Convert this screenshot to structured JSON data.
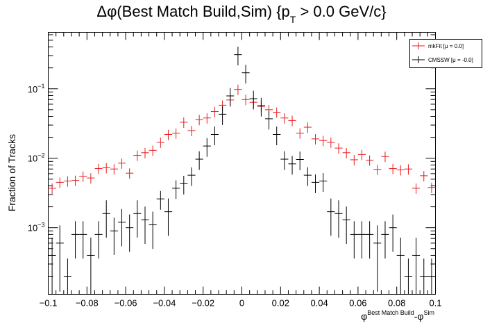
{
  "chart_data": {
    "type": "scatter",
    "title": "Δφ(Best Match Build,Sim) {p",
    "title_sub": "T",
    "title_rest": " > 0.0 GeV/c}",
    "ylabel": "Fraction of Tracks",
    "xlabel_phi": "φ",
    "xlabel_sub1": "Best Match Build",
    "xlabel_mid": "-φ",
    "xlabel_sub2": "Sim",
    "xlim": [
      -0.1,
      0.1
    ],
    "ylim": [
      0.00011,
      0.65
    ],
    "yscale": "log",
    "grid": false,
    "legend_position": "top-right",
    "x_tick_labels": [
      "−0.1",
      "−0.08",
      "−0.06",
      "−0.04",
      "−0.02",
      "0",
      "0.02",
      "0.04",
      "0.06",
      "0.08",
      "0.1"
    ],
    "y_tick_labels": [
      {
        "value": 0.001,
        "base": "10",
        "exp": "−3"
      },
      {
        "value": 0.01,
        "base": "10",
        "exp": "−2"
      },
      {
        "value": 0.1,
        "base": "10",
        "exp": "−1"
      }
    ],
    "bin_width": 0.004,
    "series": [
      {
        "name": "mkFit",
        "legend_label": "mkFit  [μ  =  0.0]",
        "color": "#e8191c",
        "x": [
          -0.098,
          -0.094,
          -0.09,
          -0.086,
          -0.082,
          -0.078,
          -0.074,
          -0.07,
          -0.066,
          -0.062,
          -0.058,
          -0.054,
          -0.05,
          -0.046,
          -0.042,
          -0.038,
          -0.034,
          -0.03,
          -0.026,
          -0.022,
          -0.018,
          -0.014,
          -0.01,
          -0.006,
          -0.002,
          0.002,
          0.006,
          0.01,
          0.014,
          0.018,
          0.022,
          0.026,
          0.03,
          0.034,
          0.038,
          0.042,
          0.046,
          0.05,
          0.054,
          0.058,
          0.062,
          0.066,
          0.07,
          0.074,
          0.078,
          0.082,
          0.086,
          0.09,
          0.094,
          0.098
        ],
        "y": [
          0.0037,
          0.0045,
          0.0047,
          0.0048,
          0.0055,
          0.0052,
          0.0071,
          0.0073,
          0.007,
          0.0085,
          0.0061,
          0.011,
          0.012,
          0.013,
          0.017,
          0.022,
          0.023,
          0.033,
          0.025,
          0.036,
          0.038,
          0.047,
          0.058,
          0.069,
          0.098,
          0.07,
          0.064,
          0.056,
          0.05,
          0.046,
          0.038,
          0.035,
          0.023,
          0.028,
          0.019,
          0.018,
          0.017,
          0.014,
          0.012,
          0.0095,
          0.0113,
          0.0094,
          0.0069,
          0.0106,
          0.0071,
          0.0068,
          0.007,
          0.0037,
          0.0056,
          0.0038
        ]
      },
      {
        "name": "CMSSW",
        "legend_label": "CMSSW  [μ  =  -0.0]",
        "color": "#000000",
        "x": [
          -0.098,
          -0.094,
          -0.09,
          -0.086,
          -0.082,
          -0.078,
          -0.074,
          -0.07,
          -0.066,
          -0.062,
          -0.058,
          -0.054,
          -0.05,
          -0.046,
          -0.042,
          -0.038,
          -0.034,
          -0.03,
          -0.026,
          -0.022,
          -0.018,
          -0.014,
          -0.01,
          -0.006,
          -0.002,
          0.002,
          0.006,
          0.01,
          0.014,
          0.018,
          0.022,
          0.026,
          0.03,
          0.034,
          0.038,
          0.042,
          0.046,
          0.05,
          0.054,
          0.058,
          0.062,
          0.066,
          0.07,
          0.074,
          0.078,
          0.082,
          0.086,
          0.09,
          0.094,
          0.098
        ],
        "y": [
          0.0004,
          0.0006,
          0.0002,
          0.0008,
          0.0008,
          0.0004,
          0.0008,
          0.0016,
          0.0009,
          0.0012,
          0.001,
          0.0016,
          0.0013,
          0.0011,
          0.0026,
          0.0017,
          0.0037,
          0.0043,
          0.0057,
          0.0097,
          0.015,
          0.022,
          0.043,
          0.079,
          0.31,
          0.17,
          0.072,
          0.057,
          0.037,
          0.022,
          0.0097,
          0.0083,
          0.0096,
          0.0057,
          0.0045,
          0.0047,
          0.0017,
          0.0016,
          0.0013,
          0.0008,
          0.0008,
          0.0008,
          0.0006,
          0.0008,
          0.001,
          0.0004,
          0.0002,
          0.0004,
          0.0002,
          0.0002
        ]
      }
    ]
  }
}
